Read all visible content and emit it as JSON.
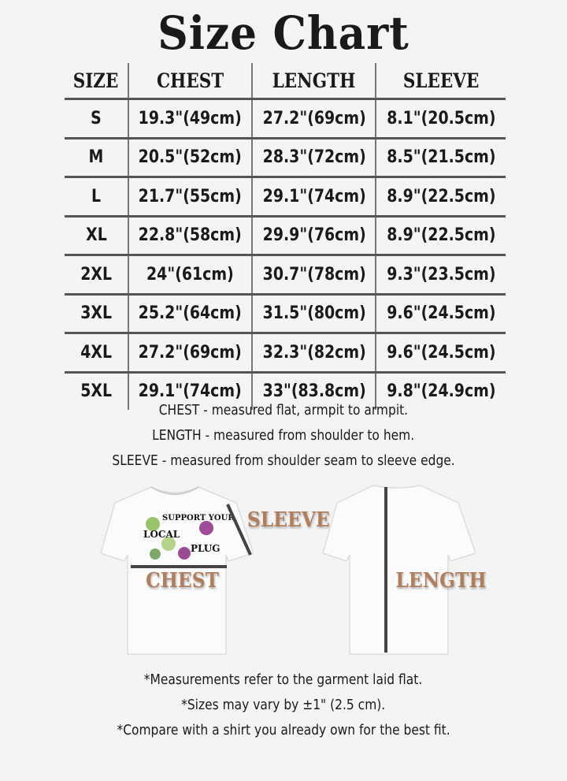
{
  "title": "Size Chart",
  "table": {
    "headers": [
      "SIZE",
      "CHEST",
      "LENGTH",
      "SLEEVE"
    ],
    "rows": [
      [
        "S",
        "19.3\"(49cm)",
        "27.2\"(69cm)",
        "8.1\"(20.5cm)"
      ],
      [
        "M",
        "20.5\"(52cm)",
        "28.3\"(72cm)",
        "8.5\"(21.5cm)"
      ],
      [
        "L",
        "21.7\"(55cm)",
        "29.1\"(74cm)",
        "8.9\"(22.5cm)"
      ],
      [
        "XL",
        "22.8\"(58cm)",
        "29.9\"(76cm)",
        "8.9\"(22.5cm)"
      ],
      [
        "2XL",
        "24\"(61cm)",
        "30.7\"(78cm)",
        "9.3\"(23.5cm)"
      ],
      [
        "3XL",
        "25.2\"(64cm)",
        "31.5\"(80cm)",
        "9.6\"(24.5cm)"
      ],
      [
        "4XL",
        "27.2\"(69cm)",
        "32.3\"(82cm)",
        "9.6\"(24.5cm)"
      ],
      [
        "5XL",
        "29.1\"(74cm)",
        "33\"(83.8cm)",
        "9.8\"(24.9cm)"
      ]
    ]
  },
  "definitions": [
    "CHEST - measured flat, armpit to armpit.",
    "LENGTH - measured from shoulder to hem.",
    "SLEEVE - measured from shoulder seam to sleeve edge."
  ],
  "diagram": {
    "sleeve_label": "SLEEVE",
    "chest_label": "CHEST",
    "length_label": "LENGTH",
    "label_color": "#b07e5c",
    "shirt_print": "SUPPORT YOUR LOCAL PLUG"
  },
  "footnotes": [
    "*Measurements refer to the garment laid flat.",
    "*Sizes may vary by ±1\" (2.5 cm).",
    "*Compare with a shirt you already own for the best fit."
  ]
}
